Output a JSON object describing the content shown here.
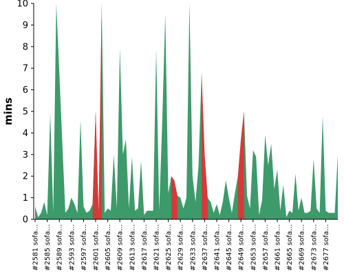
{
  "chart_data": {
    "type": "area",
    "ylabel": "mins",
    "ylim": [
      0,
      10
    ],
    "yticks": [
      0,
      1,
      2,
      3,
      4,
      5,
      6,
      7,
      8,
      9,
      10
    ],
    "grid": false,
    "legend": "none",
    "x_tick_labels": [
      "#2581 sofa…",
      "#2585 sofa…",
      "#2589 sofa…",
      "#2593 sofa…",
      "#2597 sofa…",
      "#2601 sofa…",
      "#2605 sofa…",
      "#2609 sofa…",
      "#2613 sofa…",
      "#2617 sofa…",
      "#2621 sofa…",
      "#2625 sofa…",
      "#2629 sofa…",
      "#2633 sofa…",
      "#2637 sofa…",
      "#2641 sofa…",
      "#2645 sofa…",
      "#2649 sofa…",
      "#2653 sofa…",
      "#2657 sofa…",
      "#2661 sofa…",
      "#2665 sofa…",
      "#2669 sofa…",
      "#2673 sofa…",
      "#2677 sofa…"
    ],
    "values": [
      0.6,
      0.1,
      0.3,
      0.8,
      0.2,
      4.9,
      0.3,
      10.0,
      6.8,
      3.5,
      0.3,
      0.5,
      1.0,
      0.7,
      0.3,
      4.6,
      0.6,
      0.3,
      0.4,
      0.7,
      5.0,
      0.3,
      10.0,
      0.3,
      0.5,
      0.4,
      3.0,
      0.5,
      7.9,
      3.0,
      3.7,
      0.5,
      2.9,
      0.4,
      0.5,
      2.7,
      0.2,
      0.4,
      0.4,
      0.4,
      7.9,
      0.4,
      4.5,
      9.5,
      1.2,
      2.0,
      1.8,
      1.1,
      1.0,
      0.5,
      1.0,
      10.0,
      2.0,
      0.8,
      2.5,
      6.8,
      3.0,
      1.0,
      0.8,
      0.3,
      0.7,
      0.2,
      0.8,
      1.8,
      1.0,
      0.3,
      1.2,
      2.0,
      3.7,
      5.0,
      1.1,
      0.5,
      3.2,
      2.9,
      0.2,
      0.9,
      3.9,
      2.5,
      3.5,
      1.4,
      2.3,
      0.4,
      1.6,
      0.1,
      0.4,
      0.3,
      2.1,
      0.4,
      1.0,
      0.3,
      0.3,
      0.4,
      2.8,
      0.5,
      0.3,
      4.8,
      0.4,
      0.3,
      0.3,
      0.3,
      3.0
    ],
    "failed_points": [
      19,
      20,
      21,
      22,
      45,
      46,
      47,
      55,
      56,
      57,
      67,
      68,
      69
    ],
    "colors": {
      "ok": "#3d9a6b",
      "failed": "#d43a3a",
      "axis": "#000000"
    }
  }
}
